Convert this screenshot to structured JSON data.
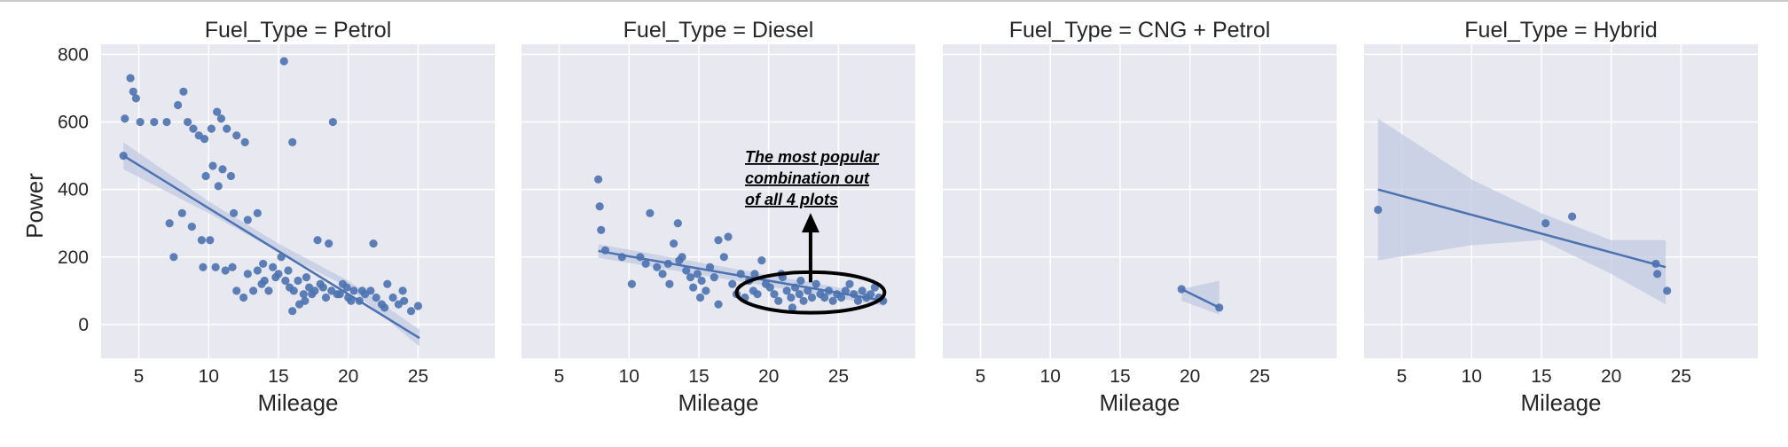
{
  "chart_data": {
    "type": "scatter",
    "facet_variable": "Fuel_Type",
    "xlabel": "Mileage",
    "ylabel": "Power",
    "xlim": [
      2.3,
      30.5
    ],
    "ylim": [
      -100,
      830
    ],
    "xticks": [
      5,
      10,
      15,
      20,
      25
    ],
    "yticks": [
      0,
      200,
      400,
      600,
      800
    ],
    "grid": true,
    "colors": {
      "background": "#e8e8f1",
      "grid": "#ffffff",
      "marker": "#4c72b0",
      "ci_band": "#c1cbe2",
      "annotation": "#000000"
    },
    "panels": [
      {
        "title": "Fuel_Type = Petrol",
        "points": [
          [
            4,
            610
          ],
          [
            4.4,
            730
          ],
          [
            4.6,
            690
          ],
          [
            4.8,
            670
          ],
          [
            5.1,
            600
          ],
          [
            3.9,
            500
          ],
          [
            6.1,
            600
          ],
          [
            7,
            600
          ],
          [
            7.8,
            650
          ],
          [
            8.2,
            690
          ],
          [
            8.5,
            600
          ],
          [
            8.9,
            580
          ],
          [
            9.3,
            560
          ],
          [
            9.7,
            550
          ],
          [
            10.2,
            580
          ],
          [
            10.6,
            630
          ],
          [
            10.9,
            610
          ],
          [
            11.3,
            580
          ],
          [
            12,
            560
          ],
          [
            12.6,
            540
          ],
          [
            10.3,
            470
          ],
          [
            11,
            460
          ],
          [
            11.6,
            440
          ],
          [
            9.8,
            440
          ],
          [
            10.7,
            410
          ],
          [
            8.1,
            330
          ],
          [
            7.2,
            300
          ],
          [
            8.8,
            290
          ],
          [
            9.5,
            250
          ],
          [
            10.1,
            250
          ],
          [
            11.8,
            330
          ],
          [
            12.8,
            310
          ],
          [
            13.5,
            330
          ],
          [
            9.6,
            170
          ],
          [
            10.5,
            170
          ],
          [
            11.2,
            160
          ],
          [
            11.7,
            170
          ],
          [
            7.5,
            200
          ],
          [
            12,
            100
          ],
          [
            12.5,
            80
          ],
          [
            13.2,
            100
          ],
          [
            13.8,
            120
          ],
          [
            14.3,
            100
          ],
          [
            13.9,
            180
          ],
          [
            14.6,
            170
          ],
          [
            15,
            150
          ],
          [
            15.2,
            200
          ],
          [
            15.5,
            130
          ],
          [
            15.8,
            110
          ],
          [
            16.1,
            100
          ],
          [
            16.4,
            130
          ],
          [
            16.8,
            90
          ],
          [
            17.2,
            110
          ],
          [
            17.6,
            100
          ],
          [
            18,
            120
          ],
          [
            18.4,
            80
          ],
          [
            18.8,
            100
          ],
          [
            19.2,
            90
          ],
          [
            19.6,
            120
          ],
          [
            20,
            80
          ],
          [
            20.4,
            100
          ],
          [
            20.8,
            70
          ],
          [
            21.2,
            90
          ],
          [
            21.6,
            100
          ],
          [
            22,
            80
          ],
          [
            22.4,
            60
          ],
          [
            22.8,
            120
          ],
          [
            23.2,
            80
          ],
          [
            23.6,
            60
          ],
          [
            24,
            70
          ],
          [
            24.5,
            40
          ],
          [
            25,
            55
          ],
          [
            16.5,
            60
          ],
          [
            16,
            40
          ],
          [
            17.8,
            250
          ],
          [
            18.6,
            240
          ],
          [
            21.8,
            240
          ],
          [
            18.9,
            600
          ],
          [
            16,
            540
          ],
          [
            15.4,
            780
          ],
          [
            20.2,
            70
          ],
          [
            19.4,
            90
          ],
          [
            18.2,
            110
          ],
          [
            17.4,
            90
          ],
          [
            16.9,
            70
          ],
          [
            19.9,
            110
          ],
          [
            21,
            100
          ],
          [
            22.6,
            50
          ],
          [
            23.9,
            100
          ],
          [
            14.8,
            140
          ],
          [
            13.5,
            160
          ],
          [
            12.8,
            150
          ],
          [
            14,
            130
          ],
          [
            15.7,
            160
          ],
          [
            17,
            140
          ]
        ],
        "regression": {
          "x": [
            3.9,
            25.1
          ],
          "y": [
            500,
            -40
          ]
        },
        "ci": {
          "x": [
            3.9,
            10,
            15,
            20,
            25.1
          ],
          "lower": [
            460,
            330,
            215,
            110,
            -65
          ],
          "upper": [
            540,
            365,
            240,
            130,
            -15
          ]
        }
      },
      {
        "title": "Fuel_Type = Diesel",
        "points": [
          [
            7.8,
            430
          ],
          [
            7.9,
            350
          ],
          [
            8,
            280
          ],
          [
            8.3,
            220
          ],
          [
            9.5,
            200
          ],
          [
            10.2,
            120
          ],
          [
            10.8,
            200
          ],
          [
            11.2,
            180
          ],
          [
            11.5,
            330
          ],
          [
            12,
            170
          ],
          [
            12.4,
            150
          ],
          [
            12.8,
            180
          ],
          [
            13.2,
            240
          ],
          [
            13.5,
            300
          ],
          [
            13.8,
            200
          ],
          [
            14.1,
            160
          ],
          [
            14.4,
            140
          ],
          [
            14.6,
            110
          ],
          [
            14.9,
            150
          ],
          [
            15.2,
            130
          ],
          [
            15.5,
            100
          ],
          [
            15.8,
            170
          ],
          [
            16.1,
            140
          ],
          [
            16.4,
            250
          ],
          [
            16.8,
            200
          ],
          [
            17.1,
            260
          ],
          [
            17.4,
            120
          ],
          [
            17.7,
            90
          ],
          [
            18,
            150
          ],
          [
            18.3,
            80
          ],
          [
            18.6,
            130
          ],
          [
            18.9,
            100
          ],
          [
            19.2,
            90
          ],
          [
            19.5,
            190
          ],
          [
            19.8,
            120
          ],
          [
            20.1,
            110
          ],
          [
            20.4,
            90
          ],
          [
            20.7,
            70
          ],
          [
            21,
            140
          ],
          [
            21.3,
            100
          ],
          [
            21.6,
            80
          ],
          [
            21.9,
            110
          ],
          [
            22.2,
            90
          ],
          [
            22.5,
            70
          ],
          [
            22.8,
            100
          ],
          [
            23.1,
            80
          ],
          [
            23.4,
            120
          ],
          [
            23.7,
            90
          ],
          [
            24,
            80
          ],
          [
            24.3,
            100
          ],
          [
            24.6,
            70
          ],
          [
            24.9,
            90
          ],
          [
            25.2,
            80
          ],
          [
            25.5,
            100
          ],
          [
            25.8,
            120
          ],
          [
            26.1,
            90
          ],
          [
            26.4,
            70
          ],
          [
            26.7,
            100
          ],
          [
            27,
            80
          ],
          [
            27.3,
            90
          ],
          [
            27.6,
            110
          ],
          [
            27.9,
            80
          ],
          [
            28.2,
            70
          ],
          [
            16.4,
            60
          ],
          [
            15.1,
            80
          ],
          [
            19,
            150
          ],
          [
            20.9,
            150
          ],
          [
            12.9,
            120
          ],
          [
            13.6,
            190
          ],
          [
            22.3,
            130
          ],
          [
            21.7,
            50
          ]
        ],
        "regression": {
          "x": [
            7.8,
            28.3
          ],
          "y": [
            218,
            70
          ]
        },
        "ci": {
          "x": [
            7.8,
            28.3
          ],
          "lower": [
            198,
            55
          ],
          "upper": [
            238,
            85
          ]
        },
        "annotation": {
          "lines": [
            "The most popular",
            "combination out",
            "of all 4 plots"
          ],
          "ellipse_center": [
            23,
            95
          ],
          "ellipse_radius": [
            5.3,
            60
          ],
          "arrow_from": [
            23,
            125
          ],
          "arrow_to": [
            23,
            320
          ]
        }
      },
      {
        "title": "Fuel_Type = CNG + Petrol",
        "points": [
          [
            19.4,
            105
          ],
          [
            22.1,
            50
          ]
        ],
        "regression": {
          "x": [
            19.4,
            22.1
          ],
          "y": [
            105,
            50
          ]
        },
        "ci": {
          "x": [
            19.4,
            22.1
          ],
          "lower": [
            70,
            30
          ],
          "upper": [
            105,
            130
          ]
        }
      },
      {
        "title": "Fuel_Type = Hybrid",
        "points": [
          [
            3.3,
            340
          ],
          [
            15.3,
            300
          ],
          [
            17.2,
            320
          ],
          [
            23.2,
            180
          ],
          [
            23.3,
            150
          ],
          [
            24,
            100
          ]
        ],
        "regression": {
          "x": [
            3.3,
            23.9
          ],
          "y": [
            400,
            170
          ]
        },
        "ci": {
          "x": [
            3.3,
            10,
            15,
            20,
            23.9
          ],
          "lower": [
            190,
            235,
            250,
            150,
            60
          ],
          "upper": [
            610,
            430,
            330,
            250,
            250
          ]
        }
      }
    ]
  }
}
